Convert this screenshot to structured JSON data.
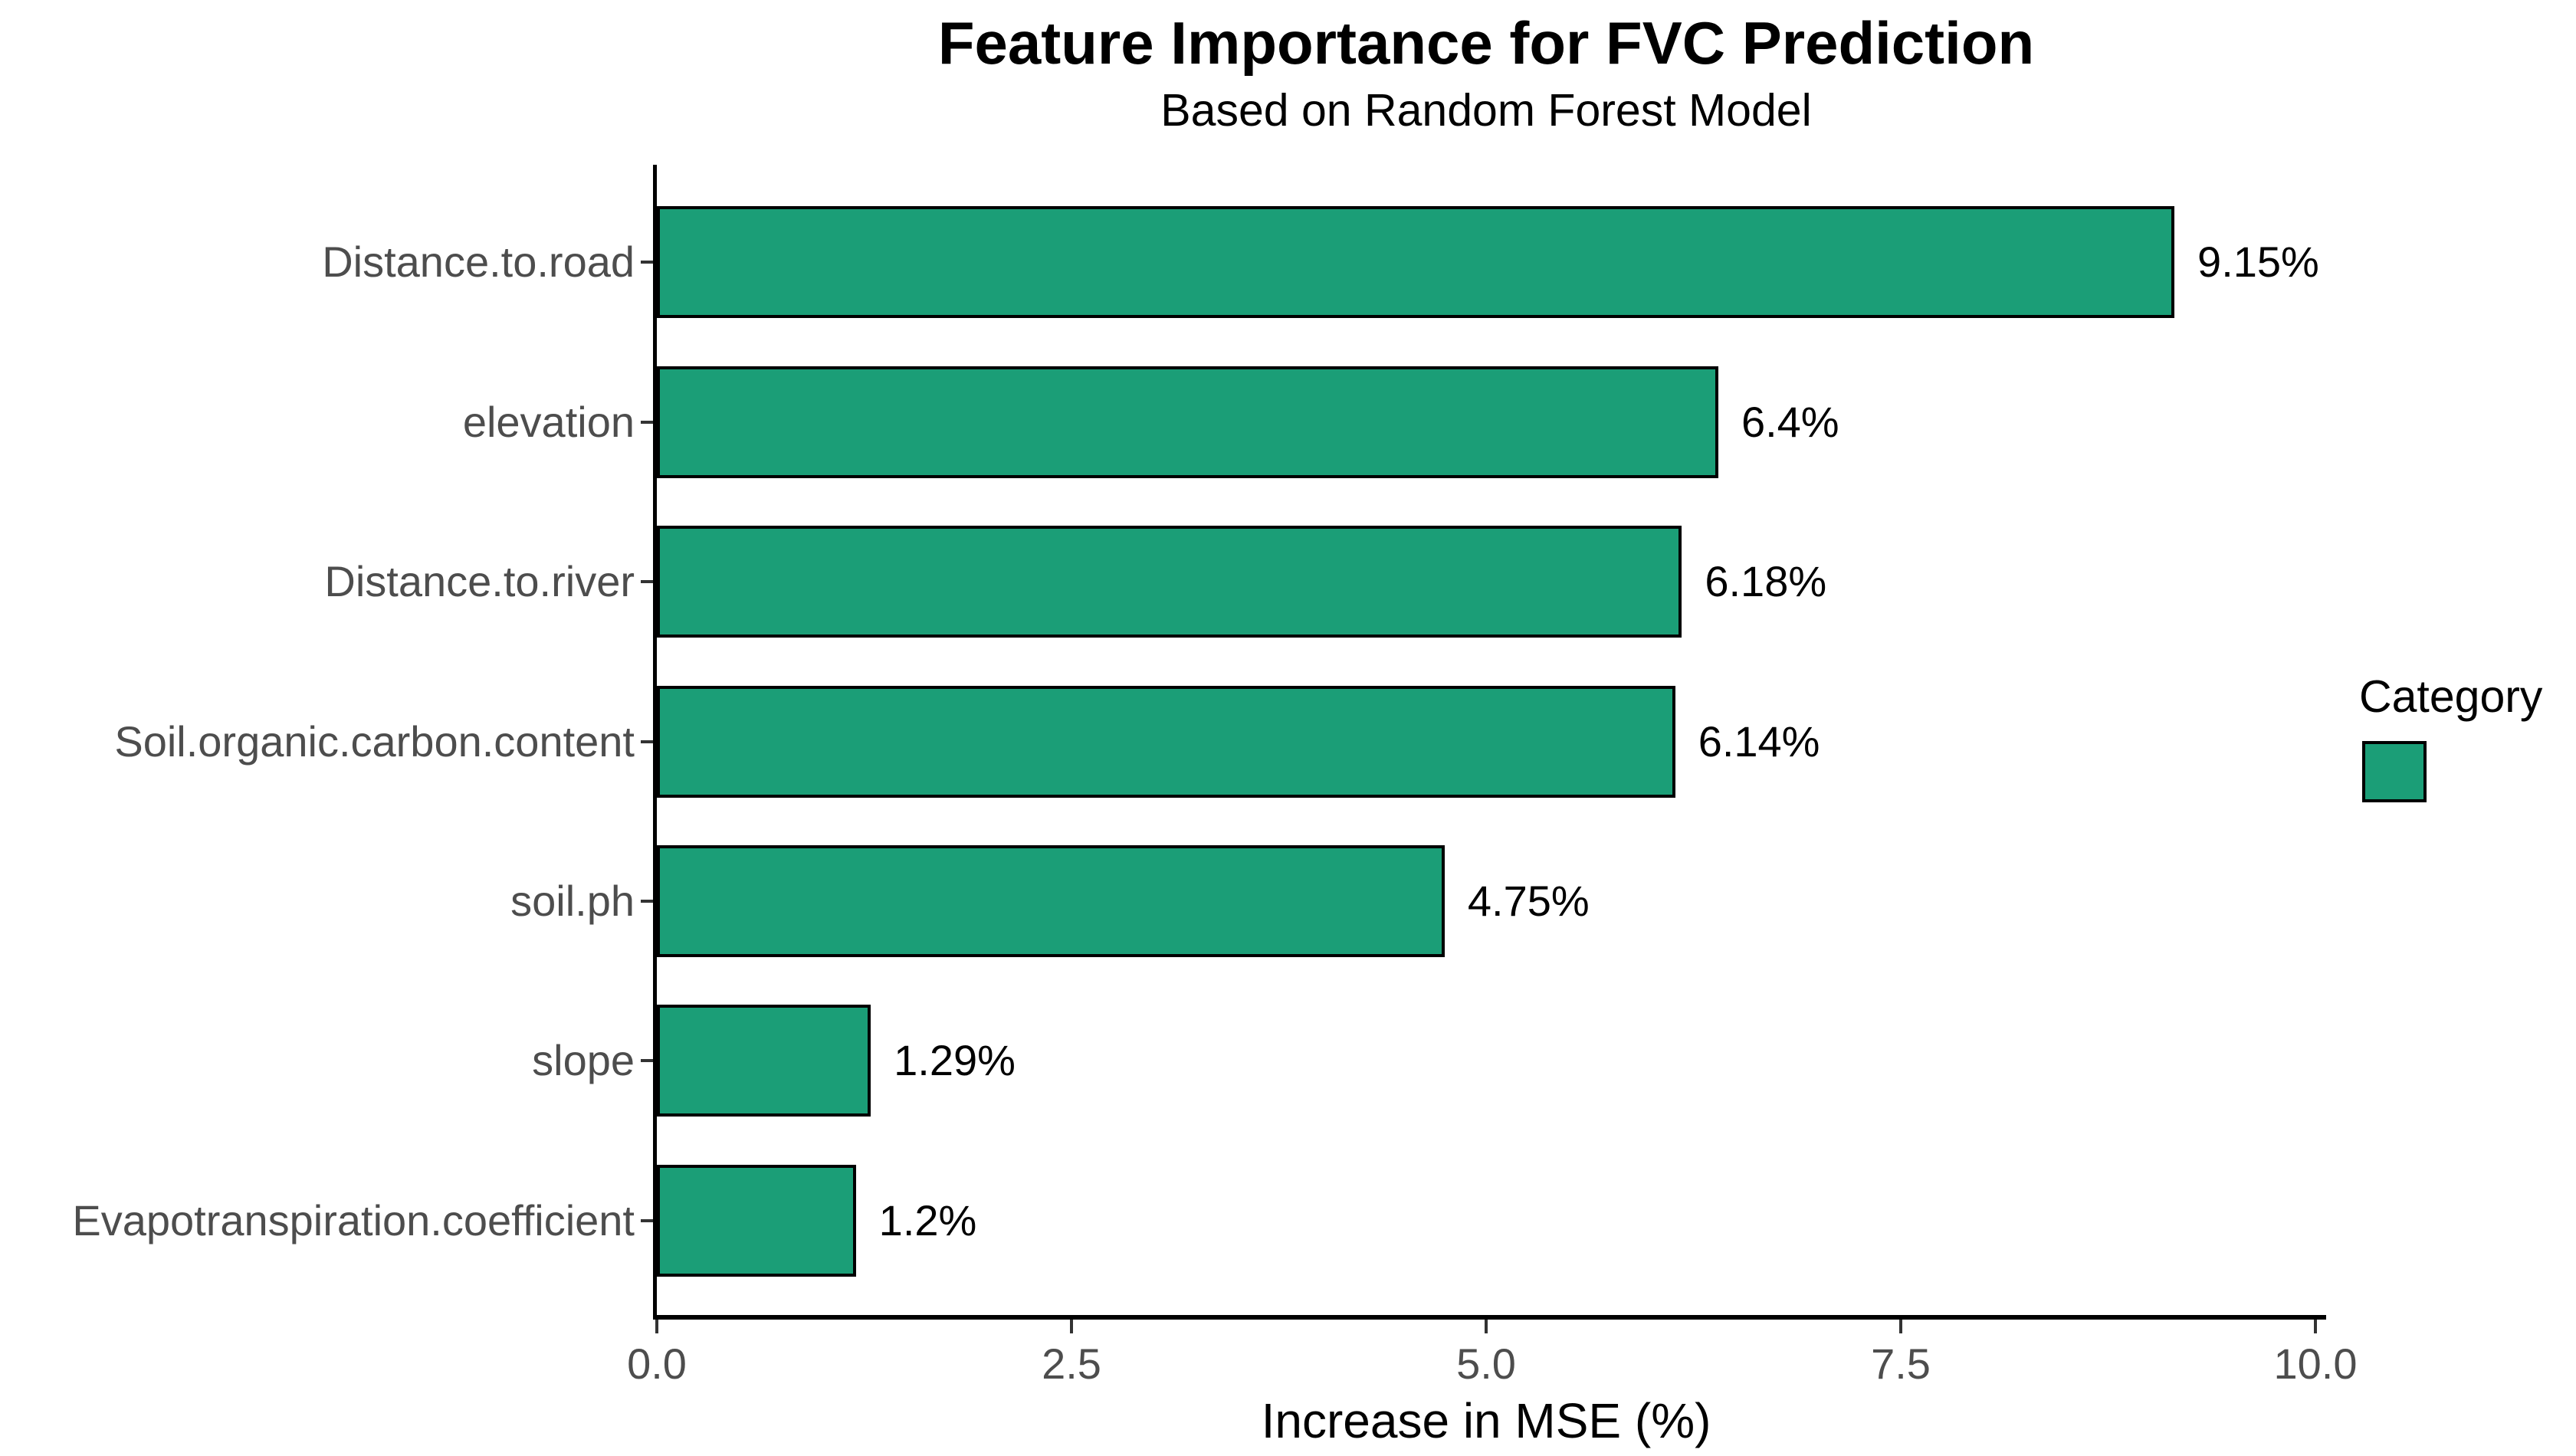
{
  "chart_data": {
    "type": "bar",
    "orientation": "horizontal",
    "title": "Feature Importance for FVC Prediction",
    "subtitle": "Based on Random Forest Model",
    "xlabel": "Increase in MSE (%)",
    "ylabel": "",
    "categories": [
      "Distance.to.road",
      "elevation",
      "Distance.to.river",
      "Soil.organic.carbon.content",
      "soil.ph",
      "slope",
      "Evapotranspiration.coefficient"
    ],
    "values": [
      9.15,
      6.4,
      6.18,
      6.14,
      4.75,
      1.29,
      1.2
    ],
    "bar_labels": [
      "9.15%",
      "6.4%",
      "6.18%",
      "6.14%",
      "4.75%",
      "1.29%",
      "1.2%"
    ],
    "xlim": [
      0,
      10
    ],
    "x_tick_values": [
      0,
      2.5,
      5,
      7.5,
      10
    ],
    "x_tick_labels": [
      "0.0",
      "2.5",
      "5.0",
      "7.5",
      "10.0"
    ],
    "grid": false,
    "bar_color": "#1B9E77",
    "bar_border_color": "#000000",
    "legend": {
      "position": "right",
      "title": "Category",
      "swatch_color": "#1B9E77"
    }
  }
}
